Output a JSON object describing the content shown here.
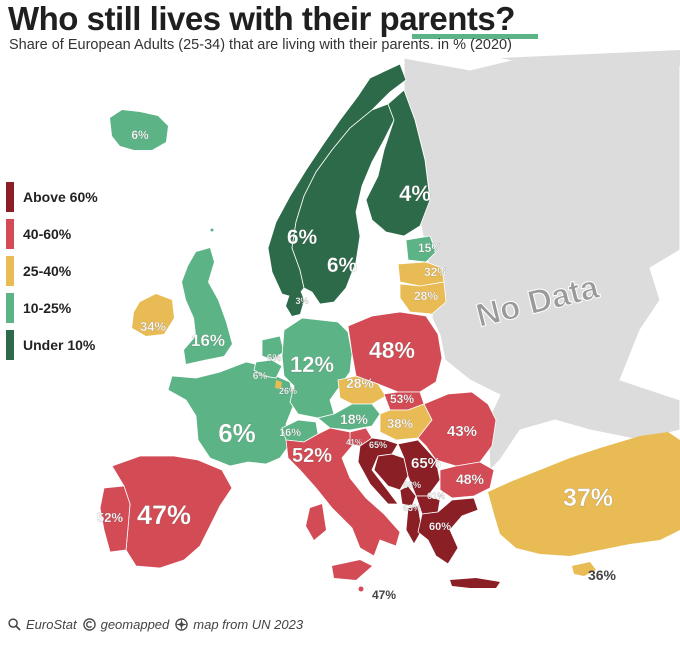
{
  "title": "Who still lives with their parents?",
  "subtitle": "Share of European Adults (25-34) that are living with their parents. in % (2020)",
  "legend": [
    {
      "label": "Above 60%",
      "color": "#8b1f26"
    },
    {
      "label": "40-60%",
      "color": "#d24b55"
    },
    {
      "label": "25-40%",
      "color": "#e9bb55"
    },
    {
      "label": "10-25%",
      "color": "#5cb486"
    },
    {
      "label": "Under 10%",
      "color": "#2c6a4a"
    }
  ],
  "no_data_label": "No Data",
  "countries": [
    {
      "name": "Iceland",
      "value": "6%"
    },
    {
      "name": "Norway",
      "value": "6%"
    },
    {
      "name": "Sweden",
      "value": "6%"
    },
    {
      "name": "Finland",
      "value": "4%"
    },
    {
      "name": "Denmark",
      "value": "3%"
    },
    {
      "name": "Estonia",
      "value": "15%"
    },
    {
      "name": "Latvia",
      "value": "32%"
    },
    {
      "name": "Lithuania",
      "value": "28%"
    },
    {
      "name": "Ireland",
      "value": "34%"
    },
    {
      "name": "United Kingdom",
      "value": "16%"
    },
    {
      "name": "Netherlands",
      "value": "6%"
    },
    {
      "name": "Belgium",
      "value": "6%"
    },
    {
      "name": "Luxembourg",
      "value": "26%"
    },
    {
      "name": "Germany",
      "value": "12%"
    },
    {
      "name": "Poland",
      "value": "48%"
    },
    {
      "name": "Czechia",
      "value": "28%"
    },
    {
      "name": "Slovakia",
      "value": "53%"
    },
    {
      "name": "Austria",
      "value": "18%"
    },
    {
      "name": "Hungary",
      "value": "38%"
    },
    {
      "name": "Switzerland",
      "value": "16%"
    },
    {
      "name": "France",
      "value": "6%"
    },
    {
      "name": "Romania",
      "value": "43%"
    },
    {
      "name": "Slovenia",
      "value": "41%"
    },
    {
      "name": "Croatia",
      "value": "65%"
    },
    {
      "name": "Serbia",
      "value": "65%"
    },
    {
      "name": "Italy",
      "value": "52%"
    },
    {
      "name": "Bosnia and Herzegovina",
      "value": "68%"
    },
    {
      "name": "Bulgaria",
      "value": "48%"
    },
    {
      "name": "Montenegro",
      "value": "63%"
    },
    {
      "name": "North Macedonia",
      "value": "61%"
    },
    {
      "name": "Albania",
      "value": "60%"
    },
    {
      "name": "Portugal",
      "value": "52%"
    },
    {
      "name": "Spain",
      "value": "47%"
    },
    {
      "name": "Turkey",
      "value": "37%"
    },
    {
      "name": "Cyprus",
      "value": "36%"
    },
    {
      "name": "Malta",
      "value": "47%"
    }
  ],
  "source": {
    "eurostat": "EuroStat",
    "geomapped": "geomapped",
    "map_credit": "map from UN 2023"
  }
}
